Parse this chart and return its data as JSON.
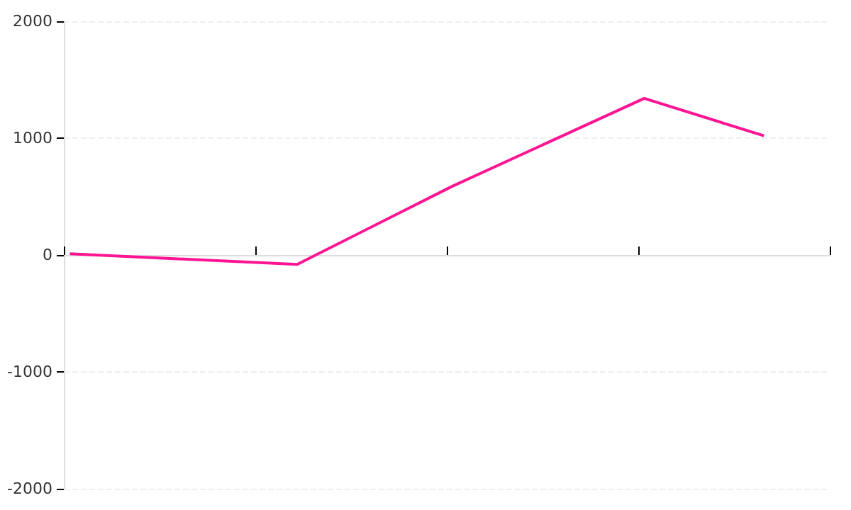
{
  "chart_data": {
    "type": "line",
    "categories": [
      null,
      null,
      null,
      null,
      null,
      null,
      null,
      null,
      null,
      null,
      null,
      null,
      null,
      null,
      null,
      null,
      null,
      null,
      null,
      null,
      null,
      null,
      null,
      null,
      null,
      null,
      null,
      null,
      null,
      null,
      null,
      null,
      null,
      null,
      null,
      null,
      null,
      null,
      null,
      null,
      null,
      null,
      null,
      null,
      null,
      null,
      null,
      null,
      null,
      null,
      null,
      null,
      null,
      null,
      null,
      null,
      null,
      null,
      null,
      null,
      null,
      null,
      null,
      null
    ],
    "series": [
      {
        "color": "#ff1493",
        "values": [
          10,
          null,
          null,
          null,
          null,
          null,
          null,
          null,
          null,
          null,
          null,
          null,
          null,
          null,
          null,
          null,
          null,
          null,
          null,
          -80,
          null,
          null,
          null,
          null,
          null,
          null,
          null,
          null,
          null,
          null,
          null,
          null,
          590,
          null,
          null,
          null,
          null,
          null,
          null,
          null,
          null,
          null,
          null,
          null,
          null,
          null,
          null,
          null,
          1340,
          null,
          null,
          null,
          null,
          null,
          null,
          null,
          null,
          null,
          1020,
          null,
          null,
          null,
          null,
          null
        ]
      }
    ],
    "ylim": [
      -2000,
      2000
    ],
    "yticks": [
      -2000,
      -1000,
      0,
      1000,
      2000
    ],
    "tick_labels": "y",
    "grid": "y",
    "line_style": "solid"
  }
}
